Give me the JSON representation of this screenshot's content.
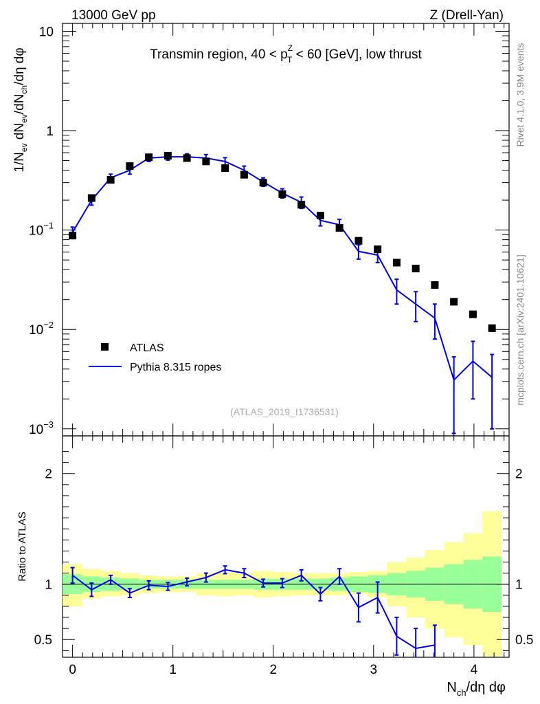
{
  "header": {
    "left": "13000 GeV pp",
    "right": "Z (Drell-Yan)"
  },
  "side_labels": {
    "rivet": "Rivet 4.1.0,  3.9M events",
    "mcplots": "mcplots.cern.ch [arXiv:2401.10621]"
  },
  "colors": {
    "mc": "#0000e6",
    "data": "#000000",
    "band_inner": "#99ff99",
    "band_outer": "#ffff99"
  },
  "chart_data": [
    {
      "type": "line",
      "title": "Transmin region, 40 < p_T^Z < 60 [GeV], low thrust",
      "title_parts": {
        "prefix": "Transmin region, 40 < p",
        "sup": "Z",
        "sub": "T",
        "suffix": " < 60 [GeV], low thrust"
      },
      "ylabel": "1/N_ev dN_ev/dN_ch/dη dφ",
      "yscale": "log",
      "ylim": [
        0.00085,
        12
      ],
      "xlim": [
        -0.1,
        4.35
      ],
      "y_tick_labels": [
        {
          "value": 10,
          "base": "10",
          "exp": ""
        },
        {
          "value": 1,
          "base": "1",
          "exp": ""
        },
        {
          "value": 0.1,
          "base": "10",
          "exp": "−1"
        },
        {
          "value": 0.01,
          "base": "10",
          "exp": "−2"
        },
        {
          "value": 0.001,
          "base": "10",
          "exp": "−3"
        }
      ],
      "watermark": "(ATLAS_2019_I1736531)",
      "legend": [
        {
          "label": "ATLAS",
          "kind": "marker"
        },
        {
          "label": "Pythia 8.315 ropes",
          "kind": "line"
        }
      ],
      "legend_position": "lower-left",
      "series": [
        {
          "name": "ATLAS",
          "x": [
            0,
            0.19,
            0.38,
            0.57,
            0.76,
            0.95,
            1.14,
            1.33,
            1.52,
            1.71,
            1.9,
            2.09,
            2.28,
            2.47,
            2.66,
            2.85,
            3.04,
            3.23,
            3.42,
            3.61,
            3.8,
            3.99,
            4.18
          ],
          "y": [
            0.088,
            0.21,
            0.32,
            0.44,
            0.54,
            0.56,
            0.53,
            0.49,
            0.42,
            0.36,
            0.3,
            0.23,
            0.18,
            0.14,
            0.105,
            0.078,
            0.064,
            0.047,
            0.041,
            0.028,
            0.019,
            0.0142,
            0.0103
          ]
        },
        {
          "name": "Pythia 8.315 ropes",
          "x": [
            0,
            0.19,
            0.38,
            0.57,
            0.76,
            0.95,
            1.14,
            1.33,
            1.52,
            1.71,
            1.9,
            2.09,
            2.28,
            2.47,
            2.66,
            2.85,
            3.04,
            3.23,
            3.42,
            3.61,
            3.8,
            3.99,
            4.18
          ],
          "y": [
            0.095,
            0.2,
            0.335,
            0.4,
            0.53,
            0.545,
            0.545,
            0.53,
            0.49,
            0.4,
            0.305,
            0.235,
            0.19,
            0.125,
            0.113,
            0.061,
            0.056,
            0.025,
            0.018,
            0.013,
            0.0031,
            0.0048,
            0.0033
          ],
          "err": [
            0.012,
            0.022,
            0.03,
            0.035,
            0.04,
            0.04,
            0.04,
            0.045,
            0.045,
            0.04,
            0.03,
            0.025,
            0.025,
            0.015,
            0.015,
            0.01,
            0.009,
            0.007,
            0.006,
            0.005,
            0.0022,
            0.0028,
            0.0023
          ]
        }
      ]
    },
    {
      "type": "line",
      "ylabel": "Ratio to ATLAS",
      "xlabel": "N_ch/dη dφ",
      "xlim": [
        -0.1,
        4.35
      ],
      "ylim": [
        0.34,
        2.34
      ],
      "x_ticks": [
        0,
        1,
        2,
        3,
        4
      ],
      "x_tick_labels": [
        "0",
        "1",
        "2",
        "3",
        "4"
      ],
      "y_ticks": [
        0.5,
        1,
        2
      ],
      "y_tick_labels": [
        "0.5",
        "1",
        "2"
      ],
      "band_edges": [
        -0.1,
        0.095,
        0.285,
        0.475,
        0.665,
        0.855,
        1.045,
        1.235,
        1.425,
        1.615,
        1.805,
        1.995,
        2.185,
        2.375,
        2.565,
        2.755,
        2.945,
        3.135,
        3.325,
        3.515,
        3.705,
        3.895,
        4.085,
        4.275
      ],
      "band_inner": [
        [
          0.91,
          1.09
        ],
        [
          0.93,
          1.07
        ],
        [
          0.94,
          1.06
        ],
        [
          0.95,
          1.05
        ],
        [
          0.96,
          1.04
        ],
        [
          0.96,
          1.04
        ],
        [
          0.96,
          1.04
        ],
        [
          0.96,
          1.04
        ],
        [
          0.96,
          1.04
        ],
        [
          0.96,
          1.04
        ],
        [
          0.95,
          1.05
        ],
        [
          0.95,
          1.05
        ],
        [
          0.95,
          1.05
        ],
        [
          0.95,
          1.05
        ],
        [
          0.94,
          1.06
        ],
        [
          0.93,
          1.07
        ],
        [
          0.92,
          1.08
        ],
        [
          0.9,
          1.1
        ],
        [
          0.88,
          1.12
        ],
        [
          0.85,
          1.15
        ],
        [
          0.82,
          1.18
        ],
        [
          0.78,
          1.22
        ],
        [
          0.75,
          1.25
        ]
      ],
      "band_outer": [
        [
          0.8,
          1.18
        ],
        [
          0.87,
          1.14
        ],
        [
          0.89,
          1.12
        ],
        [
          0.9,
          1.1
        ],
        [
          0.92,
          1.08
        ],
        [
          0.93,
          1.07
        ],
        [
          0.93,
          1.07
        ],
        [
          0.9,
          1.1
        ],
        [
          0.89,
          1.11
        ],
        [
          0.9,
          1.1
        ],
        [
          0.88,
          1.12
        ],
        [
          0.89,
          1.11
        ],
        [
          0.9,
          1.1
        ],
        [
          0.9,
          1.1
        ],
        [
          0.9,
          1.1
        ],
        [
          0.91,
          1.11
        ],
        [
          0.88,
          1.12
        ],
        [
          0.8,
          1.2
        ],
        [
          0.7,
          1.24
        ],
        [
          0.6,
          1.31
        ],
        [
          0.52,
          1.38
        ],
        [
          0.45,
          1.46
        ],
        [
          0.35,
          1.66
        ]
      ],
      "series": [
        {
          "name": "Pythia 8.315 ropes / ATLAS",
          "x": [
            0,
            0.19,
            0.38,
            0.57,
            0.76,
            0.95,
            1.14,
            1.33,
            1.52,
            1.71,
            1.9,
            2.09,
            2.28,
            2.47,
            2.66,
            2.85,
            3.04,
            3.23,
            3.42,
            3.61
          ],
          "y": [
            1.08,
            0.95,
            1.04,
            0.92,
            0.99,
            0.98,
            1.02,
            1.06,
            1.13,
            1.1,
            1.01,
            1.01,
            1.08,
            0.91,
            1.07,
            0.79,
            0.88,
            0.53,
            0.42,
            0.45
          ],
          "err": [
            0.07,
            0.06,
            0.04,
            0.04,
            0.04,
            0.035,
            0.035,
            0.04,
            0.035,
            0.04,
            0.035,
            0.04,
            0.05,
            0.06,
            0.07,
            0.13,
            0.14,
            0.17,
            0.18,
            0.18
          ]
        }
      ]
    }
  ]
}
